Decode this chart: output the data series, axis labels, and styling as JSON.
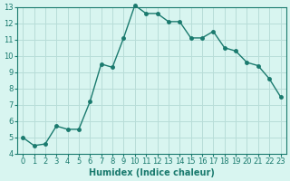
{
  "x": [
    0,
    1,
    2,
    3,
    4,
    5,
    6,
    7,
    8,
    9,
    10,
    11,
    12,
    13,
    14,
    15,
    16,
    17,
    18,
    19,
    20,
    21,
    22,
    23
  ],
  "y": [
    5.0,
    4.5,
    4.6,
    5.7,
    5.5,
    5.5,
    7.2,
    9.5,
    9.3,
    11.1,
    13.1,
    12.6,
    12.6,
    12.1,
    12.1,
    11.1,
    11.1,
    11.5,
    10.5,
    10.3,
    9.6,
    9.4,
    8.6,
    7.5
  ],
  "line_color": "#1a7a6e",
  "marker": "o",
  "marker_size": 2.5,
  "bg_color": "#d8f5f0",
  "grid_color": "#b8ddd8",
  "xlabel": "Humidex (Indice chaleur)",
  "ylabel": "",
  "xlim": [
    -0.5,
    23.5
  ],
  "ylim": [
    4,
    13
  ],
  "xticks": [
    0,
    1,
    2,
    3,
    4,
    5,
    6,
    7,
    8,
    9,
    10,
    11,
    12,
    13,
    14,
    15,
    16,
    17,
    18,
    19,
    20,
    21,
    22,
    23
  ],
  "yticks": [
    4,
    5,
    6,
    7,
    8,
    9,
    10,
    11,
    12,
    13
  ],
  "tick_color": "#1a7a6e",
  "label_color": "#1a7a6e",
  "font_size": 6,
  "xlabel_fontsize": 7,
  "linewidth": 1.0
}
